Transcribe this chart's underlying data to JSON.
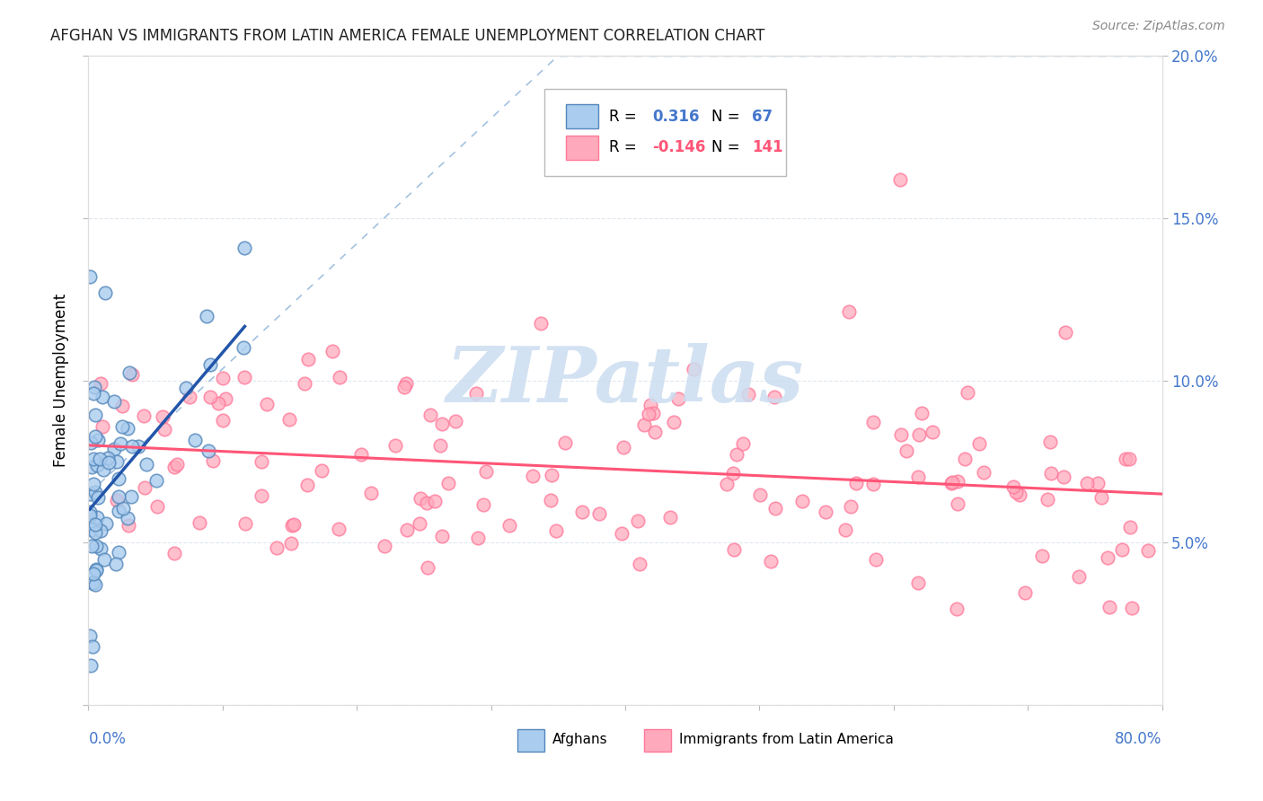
{
  "title": "AFGHAN VS IMMIGRANTS FROM LATIN AMERICA FEMALE UNEMPLOYMENT CORRELATION CHART",
  "source": "Source: ZipAtlas.com",
  "ylabel": "Female Unemployment",
  "xlim": [
    0,
    0.8
  ],
  "ylim": [
    0,
    0.2
  ],
  "r_afghan": 0.316,
  "n_afghan": 67,
  "r_latin": -0.146,
  "n_latin": 141,
  "blue_fill": "#AACCEE",
  "blue_edge": "#5588BB",
  "pink_fill": "#FFAABC",
  "pink_edge": "#FF7799",
  "trend_blue": "#2255AA",
  "trend_pink": "#FF5577",
  "ref_line_color": "#99BBDD",
  "watermark_text": "ZIPatlas",
  "watermark_color": "#CCDDEEFF",
  "background_color": "#FFFFFF",
  "grid_color": "#E0E8F0",
  "right_axis_color": "#4477CC",
  "title_color": "#222222",
  "source_color": "#888888"
}
